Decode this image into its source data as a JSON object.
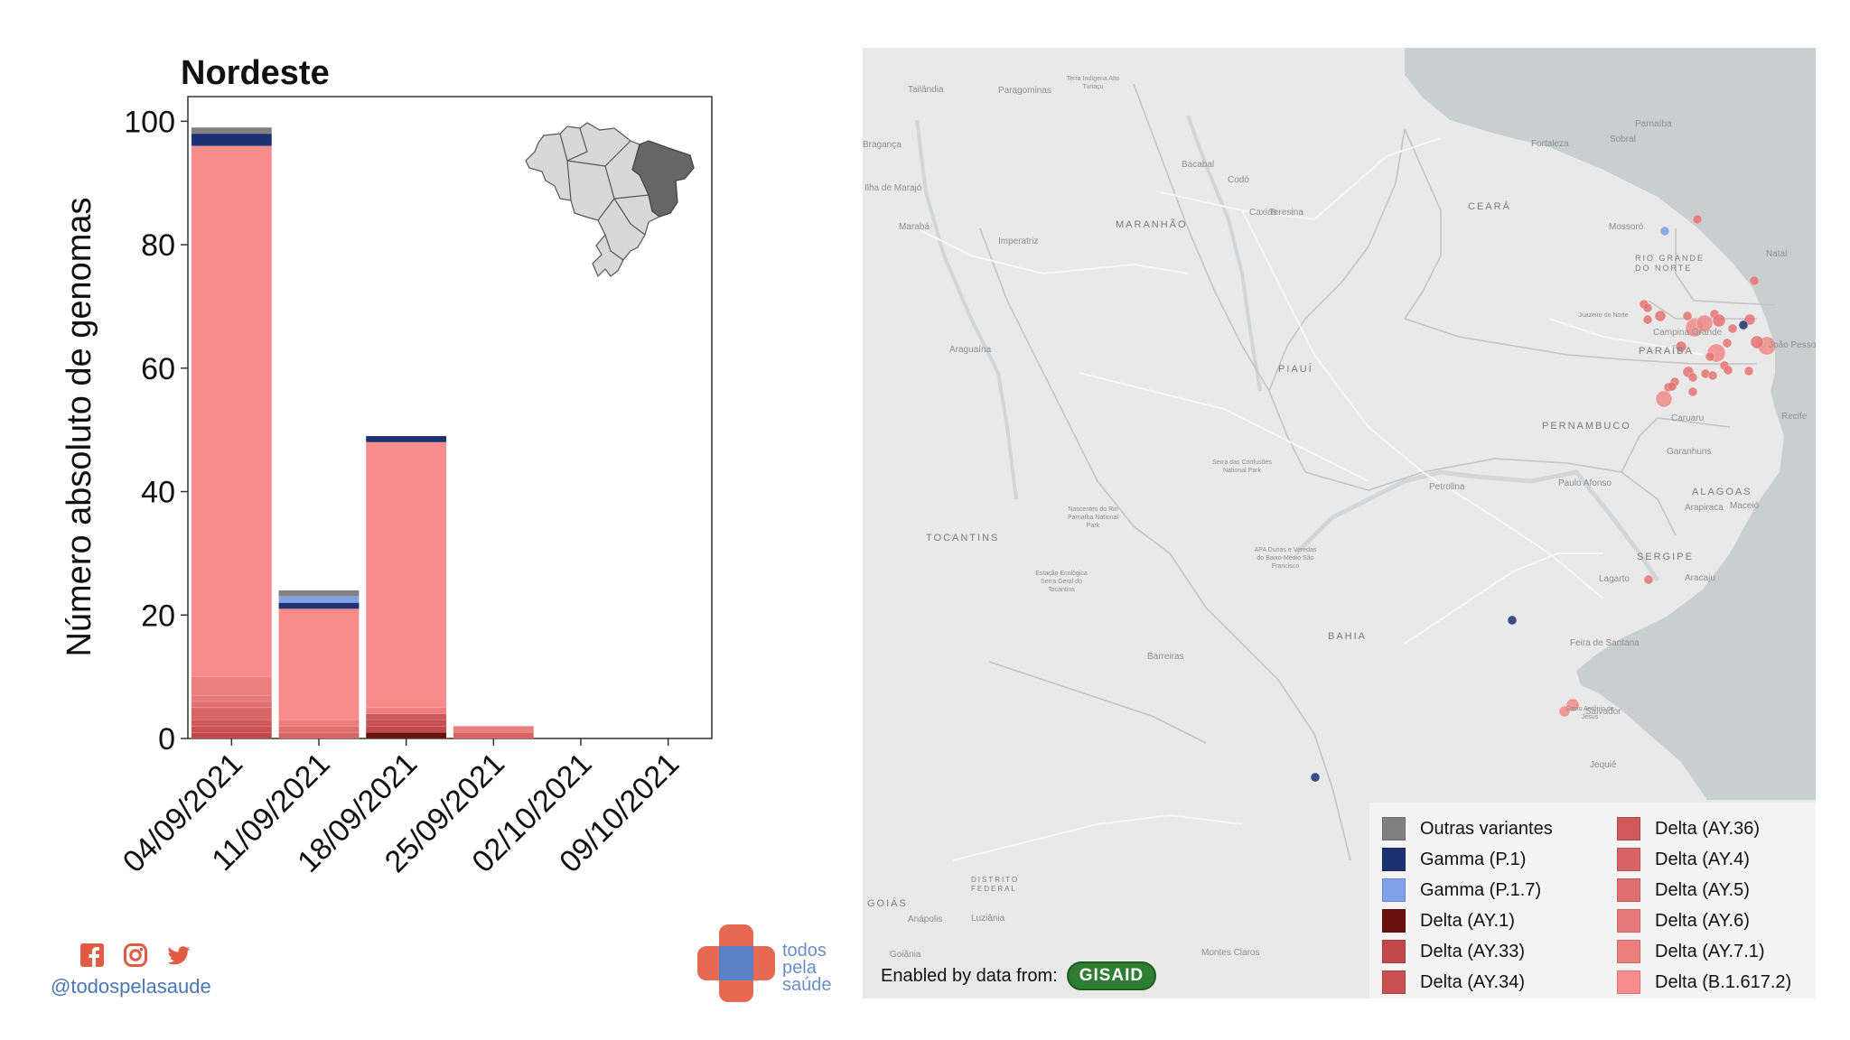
{
  "chart_data": {
    "type": "bar",
    "stacked": true,
    "title": "Nordeste",
    "ylabel": "Número absoluto de genomas",
    "xlabel": "",
    "ylim": [
      0,
      104
    ],
    "yticks": [
      0,
      20,
      40,
      60,
      80,
      100
    ],
    "categories": [
      "04/09/2021",
      "11/09/2021",
      "18/09/2021",
      "25/09/2021",
      "02/10/2021",
      "09/10/2021"
    ],
    "series": [
      {
        "name": "Delta (AY.1)",
        "color": "#6b1010",
        "values": [
          0,
          0,
          1,
          0,
          0,
          0
        ]
      },
      {
        "name": "Delta (AY.33)",
        "color": "#c14848",
        "values": [
          1,
          0,
          1,
          0,
          0,
          0
        ]
      },
      {
        "name": "Delta (AY.34)",
        "color": "#c85050",
        "values": [
          1,
          0,
          1,
          0,
          0,
          0
        ]
      },
      {
        "name": "Delta (AY.36)",
        "color": "#cf5858",
        "values": [
          1,
          0,
          1,
          0,
          0,
          0
        ]
      },
      {
        "name": "Delta (AY.4)",
        "color": "#d86464",
        "values": [
          2,
          1,
          0,
          1,
          0,
          0
        ]
      },
      {
        "name": "Delta (AY.5)",
        "color": "#e07070",
        "values": [
          1,
          1,
          0,
          0,
          0,
          0
        ]
      },
      {
        "name": "Delta (AY.6)",
        "color": "#e67a7a",
        "values": [
          1,
          0,
          0,
          0,
          0,
          0
        ]
      },
      {
        "name": "Delta (AY.7.1)",
        "color": "#ec7e7e",
        "values": [
          3,
          1,
          1,
          1,
          0,
          0
        ]
      },
      {
        "name": "Delta (B.1.617.2)",
        "color": "#fa8b8b",
        "values": [
          86,
          18,
          43,
          0,
          0,
          0
        ]
      },
      {
        "name": "Gamma (P.1)",
        "color": "#1d3170",
        "values": [
          2,
          1,
          1,
          0,
          0,
          0
        ]
      },
      {
        "name": "Gamma (P.1.7)",
        "color": "#7fa1e8",
        "values": [
          0,
          1,
          0,
          0,
          0,
          0
        ]
      },
      {
        "name": "Outras variantes",
        "color": "#808080",
        "values": [
          1,
          1,
          0,
          0,
          0,
          0
        ]
      }
    ]
  },
  "legend": {
    "items": [
      {
        "label": "Outras variantes",
        "color": "#808080"
      },
      {
        "label": "Gamma (P.1)",
        "color": "#1d3170"
      },
      {
        "label": "Gamma (P.1.7)",
        "color": "#7fa1e8"
      },
      {
        "label": "Delta (AY.1)",
        "color": "#6b1010"
      },
      {
        "label": "Delta (AY.33)",
        "color": "#c14848"
      },
      {
        "label": "Delta (AY.34)",
        "color": "#c85050"
      },
      {
        "label": "Delta (AY.36)",
        "color": "#cf5858"
      },
      {
        "label": "Delta (AY.4)",
        "color": "#d86464"
      },
      {
        "label": "Delta (AY.5)",
        "color": "#e07070"
      },
      {
        "label": "Delta (AY.6)",
        "color": "#e67a7a"
      },
      {
        "label": "Delta (AY.7.1)",
        "color": "#ec7e7e"
      },
      {
        "label": "Delta (B.1.617.2)",
        "color": "#fa8b8b"
      }
    ]
  },
  "map": {
    "state_labels": [
      "MARANHÃO",
      "PIAUÍ",
      "CEARÁ",
      "RIO GRANDE DO NORTE",
      "PARAÍBA",
      "PERNAMBUCO",
      "ALAGOAS",
      "SERGIPE",
      "BAHIA",
      "TOCANTINS",
      "GOIÁS",
      "DISTRITO FEDERAL"
    ],
    "city_labels": [
      "Fortaleza",
      "Teresina",
      "Caxias",
      "Codó",
      "Bacabal",
      "Imperatriz",
      "Marabá",
      "Araguaína",
      "Mossoró",
      "Natal",
      "Juazeiro do Norte",
      "Campina Grande",
      "João Pessoa",
      "Recife",
      "Caruaru",
      "Garanhuns",
      "Petrolina",
      "Paulo Afonso",
      "Maceió",
      "Arapiraca",
      "Aracaju",
      "Lagarto",
      "Feira de Santana",
      "Santo Antônio de Jesus",
      "Salvador",
      "Jequié",
      "Barreiras",
      "Montes Claros",
      "Luziânia",
      "Anápolis",
      "Goiânia",
      "Sobral",
      "Parnaíba",
      "Tailândia",
      "Paragominas",
      "Serra das Confusões National Park",
      "Estação Ecológica Serra Geral do Tocantins",
      "Nascentes do Rio Parnaíba National Park",
      "APA Dunas e Veredas do Baixo-Médio São Francisco",
      "Terra Indígena Alto Turiaçu",
      "Bragança",
      "Ilha de Marajó"
    ],
    "attribution": "Enabled by data from:",
    "attribution_logo": "GISAID"
  },
  "footer": {
    "handle": "@todospelasaude",
    "brand_line1": "todos",
    "brand_line2": "pela",
    "brand_line3": "saúde",
    "social": [
      "facebook-icon",
      "instagram-icon",
      "twitter-icon"
    ]
  },
  "colors": {
    "map_land": "#e9e9e9",
    "map_sea": "#c9cfd1",
    "brand_red": "#e66a52",
    "brand_blue": "#5a80c6"
  }
}
